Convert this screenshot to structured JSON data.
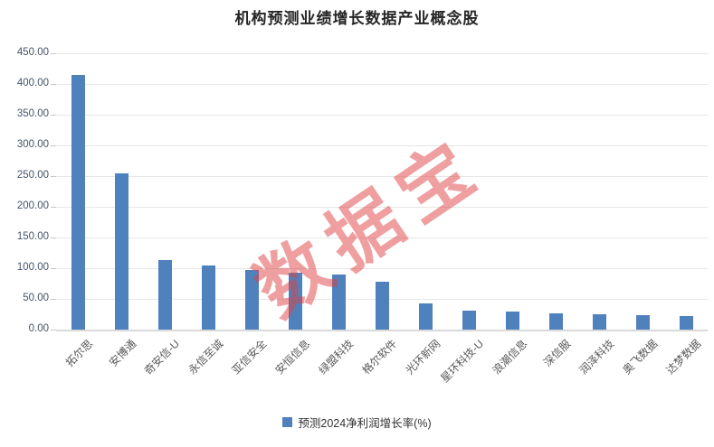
{
  "title": "机构预测业绩增长数据产业概念股",
  "watermark": {
    "text": "数据宝",
    "color": "rgba(224,64,64,0.5)"
  },
  "legend": {
    "label": "预测2024净利润增长率(%)"
  },
  "colors": {
    "bar": "#4f81bd",
    "gridline": "#e6e6e6",
    "axis_line": "#d9d9d9",
    "y_tick_text": "#44546a",
    "x_tick_text": "#595959",
    "title_text": "#262626",
    "watermark": "rgba(224,64,64,0.5)"
  },
  "chart_data": {
    "type": "bar",
    "title": "机构预测业绩增长数据产业概念股",
    "categories": [
      "拓尔思",
      "安博通",
      "奇安信-U",
      "永信至诚",
      "亚信安全",
      "安恒信息",
      "绿盟科技",
      "格尔软件",
      "光环新网",
      "星环科技-U",
      "浪潮信息",
      "深信服",
      "润泽科技",
      "奥飞数据",
      "达梦数据"
    ],
    "values": [
      415,
      255,
      113,
      105,
      97,
      92,
      90,
      78,
      42,
      31,
      30,
      27,
      25,
      23,
      22
    ],
    "series_name": "预测2024净利润增长率(%)",
    "xlabel": "",
    "ylabel": "",
    "ylim": [
      0,
      450
    ],
    "ytick_step": 50,
    "ytick_labels": [
      "450.00",
      "400.00",
      "350.00",
      "300.00",
      "250.00",
      "200.00",
      "150.00",
      "100.00",
      "50.00",
      "0.00"
    ],
    "bar_color": "#4f81bd",
    "grid": true,
    "legend_position": "bottom",
    "legend_label": "预测2024净利润增长率(%)"
  }
}
